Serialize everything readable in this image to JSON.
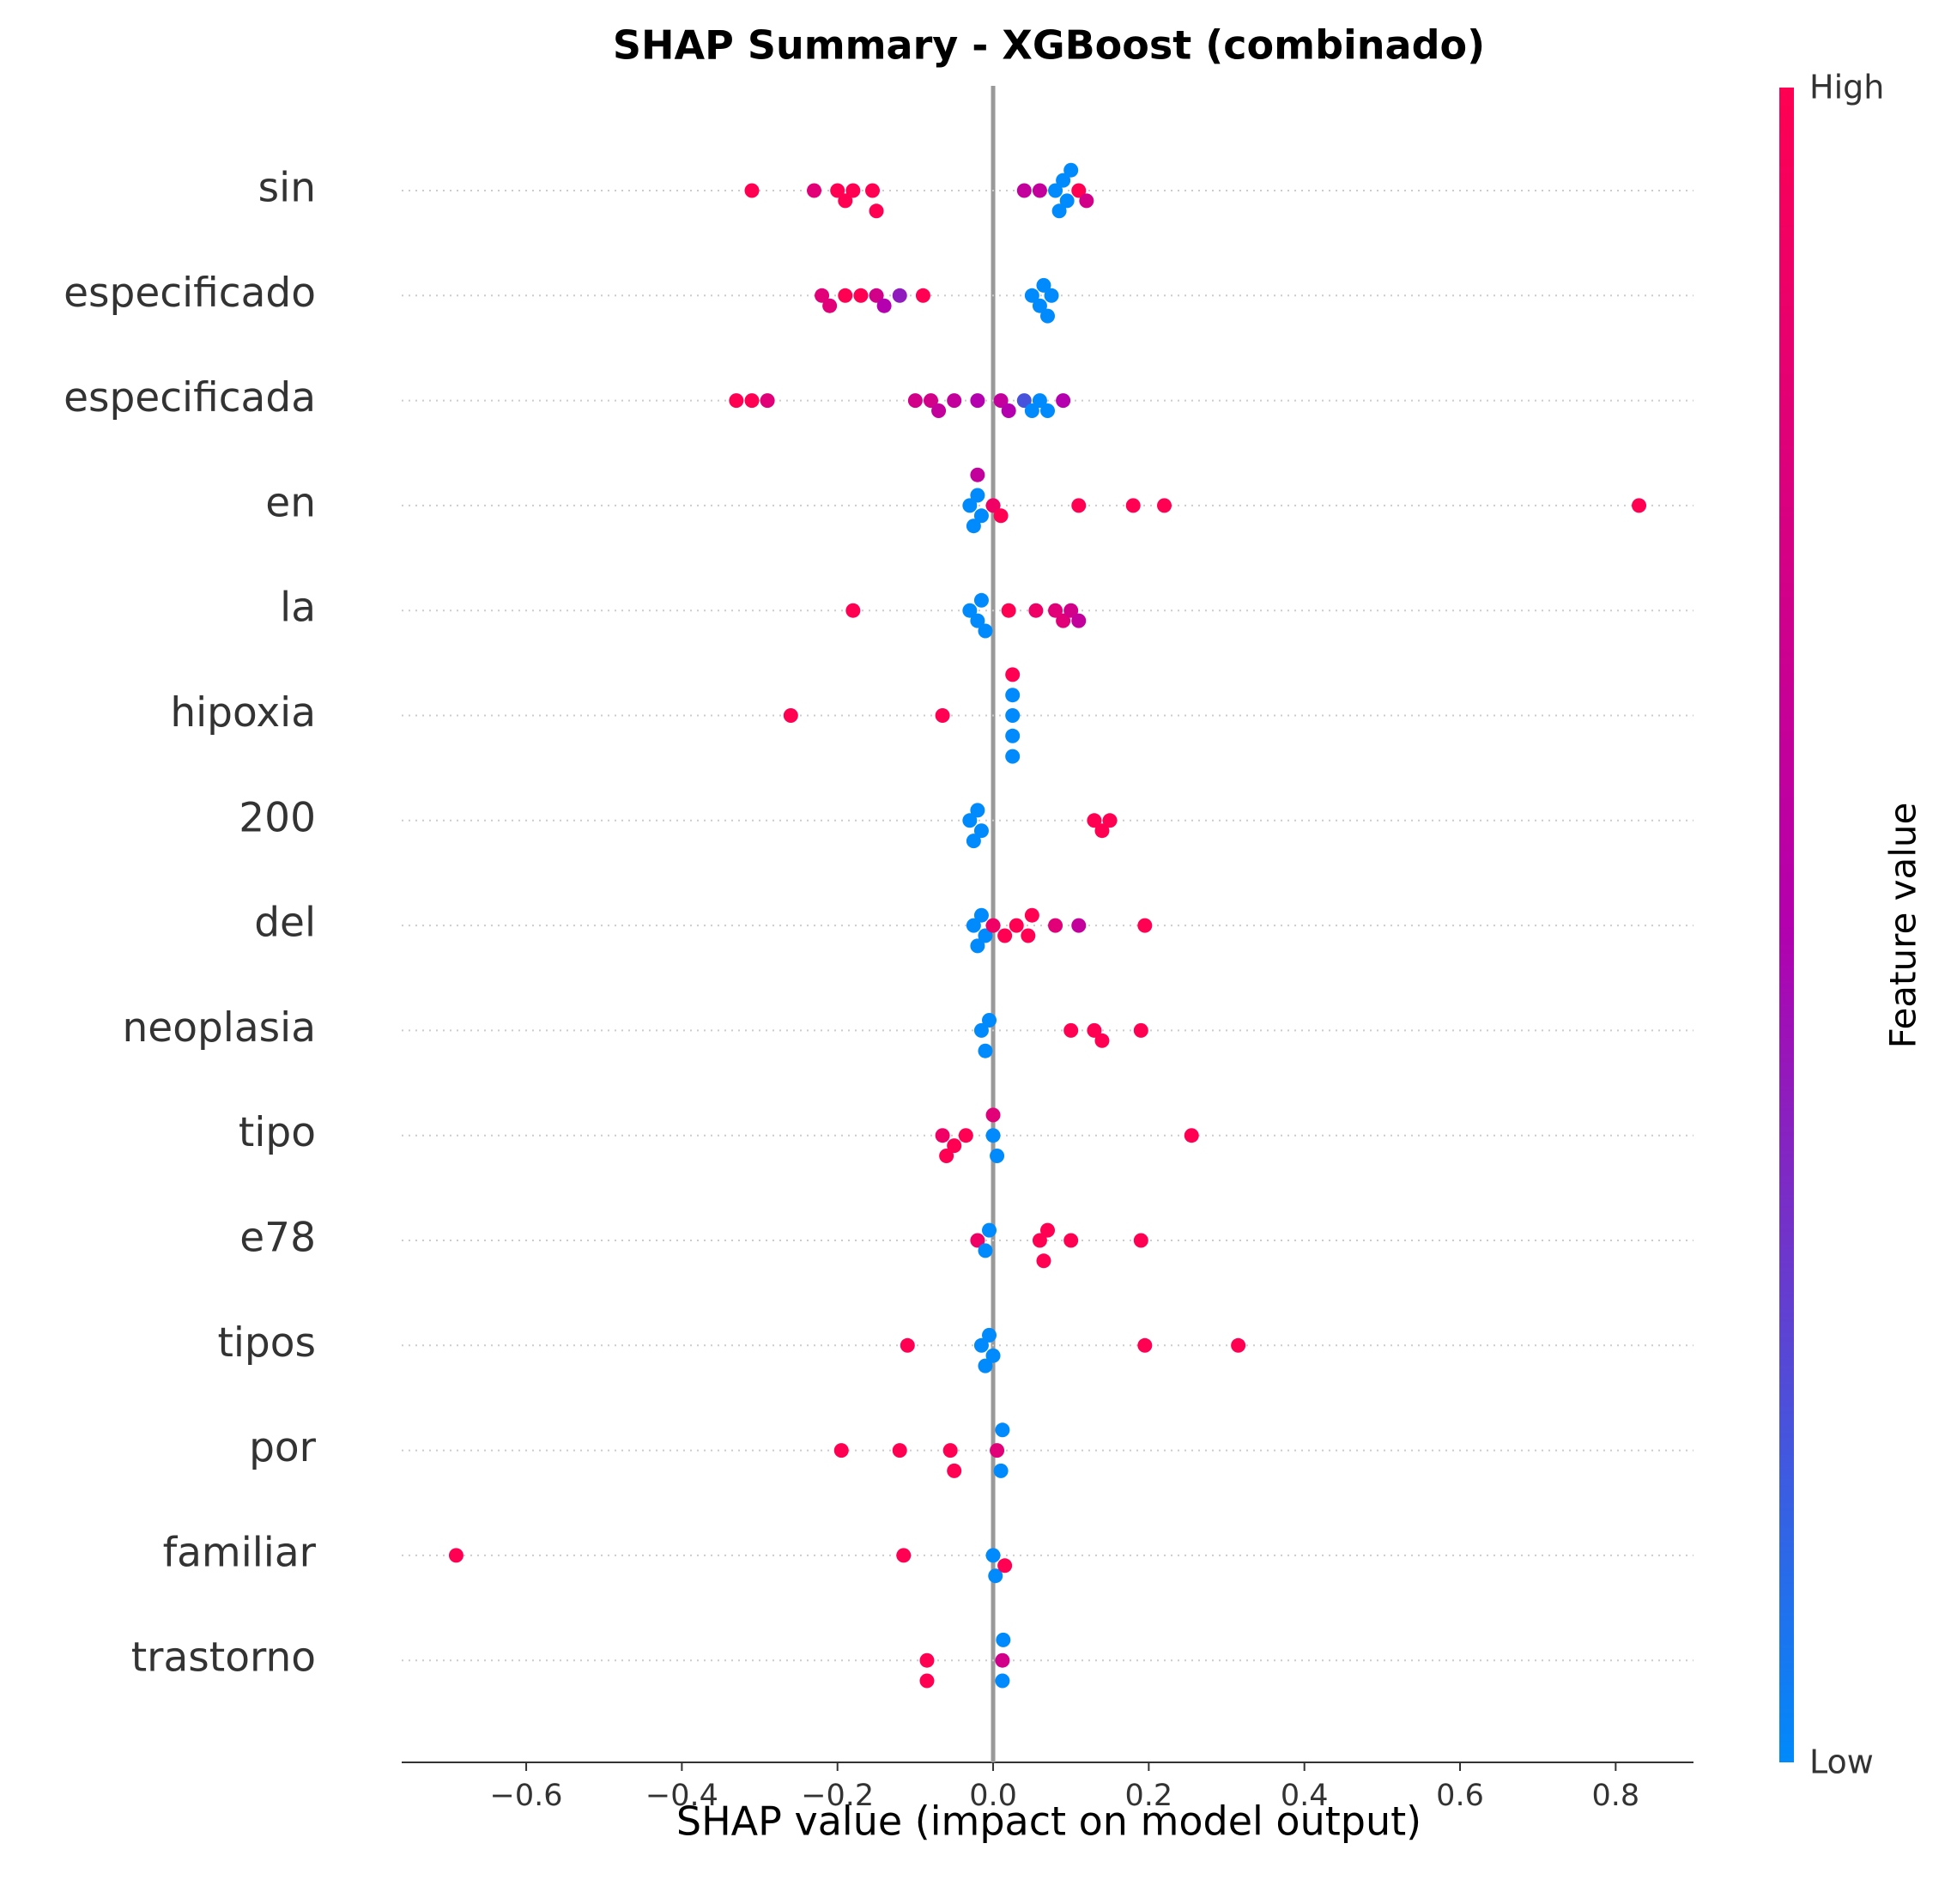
{
  "chart_data": {
    "type": "beeswarm",
    "title": "SHAP Summary - XGBoost (combinado)",
    "xlabel": "SHAP value (impact on model output)",
    "xlim": [
      -0.76,
      0.9
    ],
    "xticks": [
      {
        "value": -0.6,
        "label": "−0.6"
      },
      {
        "value": -0.4,
        "label": "−0.4"
      },
      {
        "value": -0.2,
        "label": "−0.2"
      },
      {
        "value": 0,
        "label": "0.0"
      },
      0.2,
      0.4,
      0.6,
      0.8
    ],
    "colorbar": {
      "label": "Feature value",
      "high": "High",
      "low": "Low",
      "low_color": "#008afb",
      "mid_color": "#b400ae",
      "high_color": "#ff0052"
    },
    "features": [
      {
        "name": "sin",
        "values": [
          -0.31,
          -0.23,
          -0.2,
          -0.19,
          -0.18,
          -0.155,
          -0.15,
          0.04,
          0.06,
          0.08,
          0.085,
          0.09,
          0.095,
          0.1,
          0.11,
          0.12
        ],
        "feature_values": [
          1,
          0.8,
          1,
          1,
          1,
          1,
          1,
          0.6,
          0.6,
          0,
          0,
          0,
          0,
          0,
          1,
          0.7
        ]
      },
      {
        "name": "especificado",
        "values": [
          -0.22,
          -0.21,
          -0.19,
          -0.17,
          -0.15,
          -0.14,
          -0.12,
          -0.09,
          0.05,
          0.06,
          0.065,
          0.07,
          0.075
        ],
        "feature_values": [
          0.8,
          0.8,
          1,
          1,
          0.7,
          0.5,
          0.4,
          1,
          0,
          0,
          0,
          0,
          0
        ]
      },
      {
        "name": "especificada",
        "values": [
          -0.33,
          -0.31,
          -0.29,
          -0.1,
          -0.08,
          -0.07,
          -0.05,
          -0.02,
          0.01,
          0.02,
          0.04,
          0.05,
          0.06,
          0.07,
          0.09
        ],
        "feature_values": [
          1,
          1,
          0.8,
          0.7,
          0.7,
          0.6,
          0.6,
          0.5,
          0.6,
          0.5,
          0.2,
          0,
          0,
          0,
          0.5
        ]
      },
      {
        "name": "en",
        "values": [
          -0.03,
          -0.025,
          -0.02,
          -0.015,
          -0.02,
          0,
          0.01,
          0.11,
          0.18,
          0.22,
          0.83
        ],
        "feature_values": [
          0,
          0,
          0,
          0,
          0.6,
          0.9,
          1,
          1,
          1,
          1,
          1
        ]
      },
      {
        "name": "la",
        "values": [
          -0.18,
          -0.03,
          -0.02,
          -0.015,
          -0.01,
          0.02,
          0.055,
          0.08,
          0.09,
          0.1,
          0.11
        ],
        "feature_values": [
          1,
          0,
          0,
          0,
          0,
          1,
          0.9,
          0.8,
          0.8,
          0.7,
          0.6
        ]
      },
      {
        "name": "hipoxia",
        "values": [
          -0.26,
          -0.065,
          0.025,
          0.025,
          0.025,
          0.025,
          0.025
        ],
        "feature_values": [
          1,
          1,
          0,
          0,
          0,
          0,
          1
        ]
      },
      {
        "name": "200",
        "values": [
          -0.03,
          -0.025,
          -0.02,
          -0.015,
          0.13,
          0.14,
          0.15
        ],
        "feature_values": [
          0,
          0,
          0,
          0,
          1,
          1,
          1
        ]
      },
      {
        "name": "del",
        "values": [
          -0.025,
          -0.02,
          -0.015,
          -0.01,
          0,
          0.015,
          0.03,
          0.045,
          0.05,
          0.08,
          0.11,
          0.195
        ],
        "feature_values": [
          0,
          0,
          0,
          0,
          0.9,
          1,
          1,
          1,
          1,
          0.8,
          0.6,
          1
        ]
      },
      {
        "name": "neoplasia",
        "values": [
          -0.015,
          -0.01,
          -0.005,
          0.1,
          0.13,
          0.14,
          0.19
        ],
        "feature_values": [
          0,
          0,
          0,
          1,
          1,
          1,
          1
        ]
      },
      {
        "name": "tipo",
        "values": [
          -0.065,
          -0.06,
          -0.05,
          -0.035,
          0,
          0.005,
          0,
          0.255
        ],
        "feature_values": [
          0.9,
          1,
          1,
          1,
          0,
          0,
          0.8,
          1
        ]
      },
      {
        "name": "e78",
        "values": [
          -0.02,
          -0.01,
          -0.005,
          0.06,
          0.065,
          0.07,
          0.1,
          0.19
        ],
        "feature_values": [
          0.9,
          0,
          0,
          1,
          1,
          1,
          1,
          1
        ]
      },
      {
        "name": "tipos",
        "values": [
          -0.11,
          -0.015,
          -0.01,
          -0.005,
          0,
          0.195,
          0.315
        ],
        "feature_values": [
          1,
          0,
          0,
          0,
          0,
          1,
          1
        ]
      },
      {
        "name": "por",
        "values": [
          -0.195,
          -0.12,
          -0.055,
          -0.05,
          0.005,
          0.01,
          0.012
        ],
        "feature_values": [
          1,
          1,
          1,
          1,
          0.8,
          0,
          0
        ]
      },
      {
        "name": "familiar",
        "values": [
          -0.69,
          -0.115,
          0,
          0.003,
          0.015
        ],
        "feature_values": [
          1,
          1,
          0,
          0,
          1
        ]
      },
      {
        "name": "trastorno",
        "values": [
          -0.085,
          -0.085,
          0.012,
          0.012,
          0.013
        ],
        "feature_values": [
          1,
          1,
          0.7,
          0,
          0
        ]
      }
    ]
  }
}
